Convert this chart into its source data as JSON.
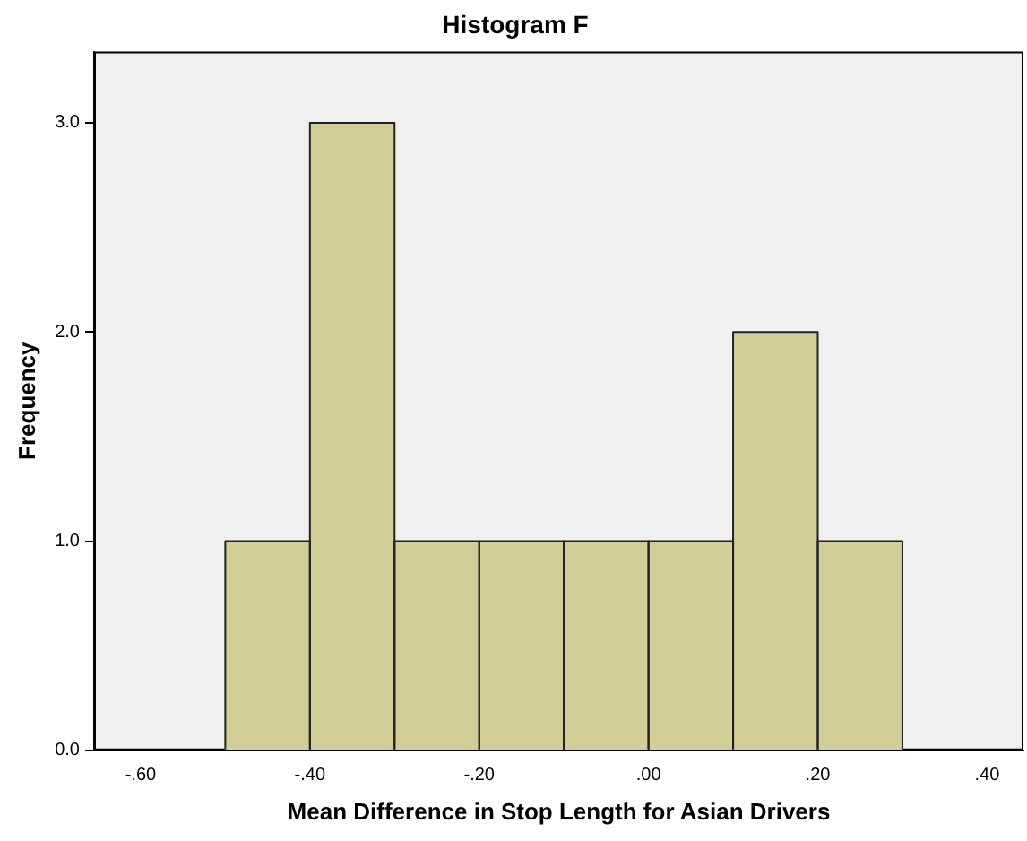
{
  "chart_data": {
    "type": "histogram",
    "title": "Histogram F",
    "xlabel": "Mean Difference in Stop Length for Asian Drivers",
    "ylabel": "Frequency",
    "bins": [
      -0.5,
      -0.4,
      -0.3,
      -0.2,
      -0.1,
      0,
      0.1,
      0.2,
      0.3
    ],
    "values": [
      1,
      3,
      1,
      1,
      1,
      1,
      2,
      1
    ],
    "color": "#d3ce98",
    "xlim": [
      -0.655,
      0.443
    ],
    "xticks": [
      {
        "value": -0.6,
        "label": "-.60"
      },
      {
        "value": -0.4,
        "label": "-.40"
      },
      {
        "value": -0.2,
        "label": "-.20"
      },
      {
        "value": 0,
        "label": ".00"
      },
      {
        "value": 0.2,
        "label": ".20"
      },
      {
        "value": 0.4,
        "label": ".40"
      }
    ],
    "ylim": [
      0,
      3.34
    ],
    "yticks": [
      {
        "value": 0,
        "label": "0.0"
      },
      {
        "value": 1,
        "label": "1.0"
      },
      {
        "value": 2,
        "label": "2.0"
      },
      {
        "value": 3,
        "label": "3.0"
      }
    ],
    "grid": false,
    "legend": false
  }
}
